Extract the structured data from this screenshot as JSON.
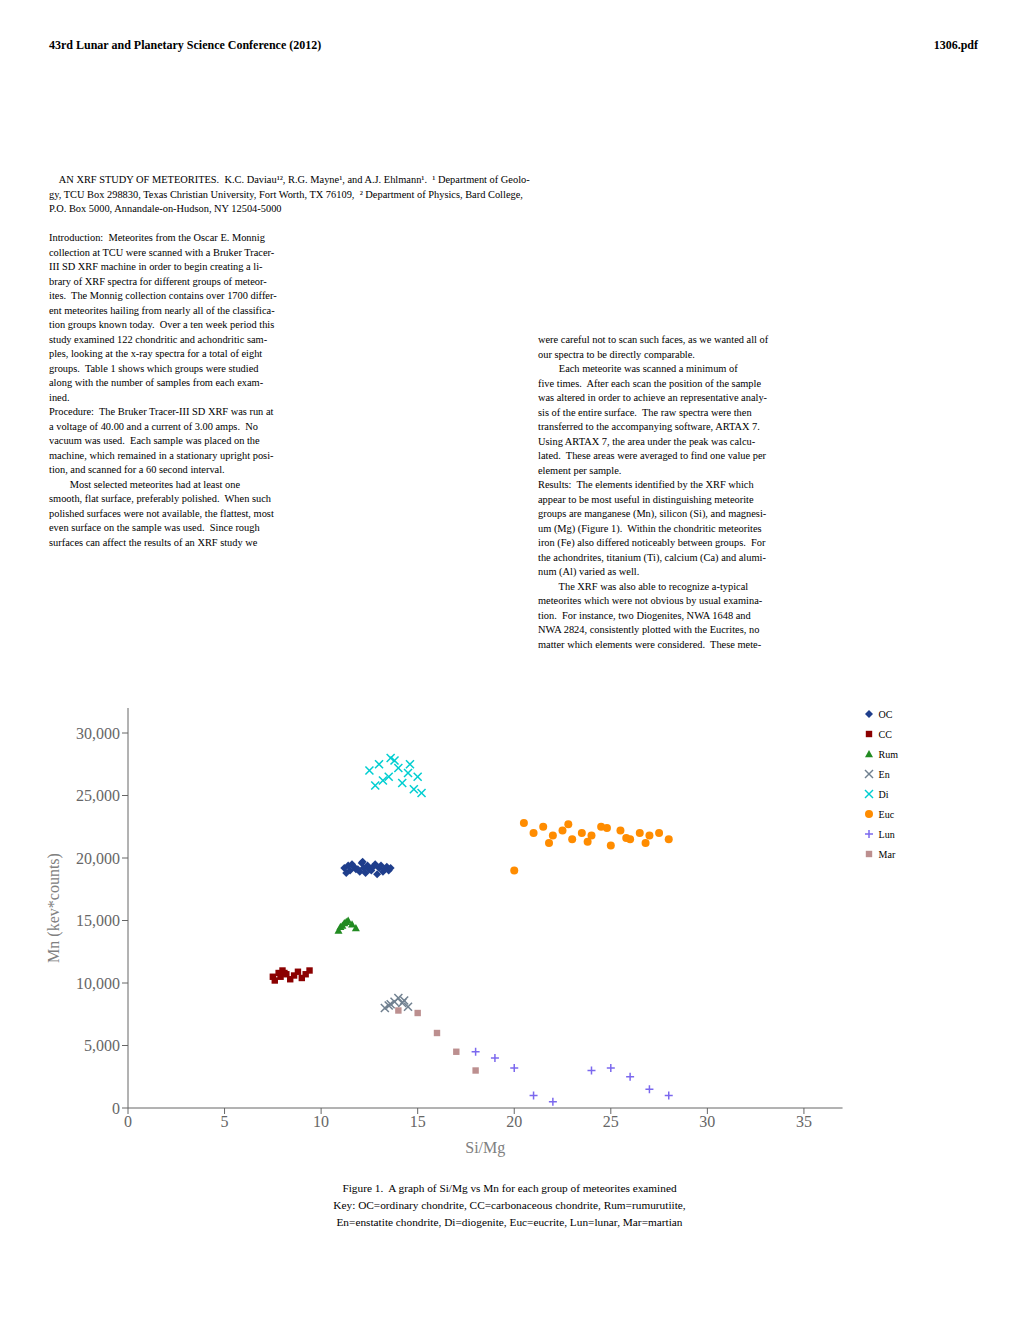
{
  "chart_data": {
    "type": "scatter",
    "title": "43rd Lunar and Planetary Science Conference (2012)",
    "annotations": [
      "1306.pdf",
      "    AN XRF STUDY OF METEORITES.  K.C. Daviau¹², R.G. Mayne¹, and A.J. Ehlmann¹.  ¹ Department of Geolo-\ngy, TCU Box 298830, Texas Christian University, Fort Worth, TX 76109,  ² Department of Physics, Bard College,\nP.O. Box 5000, Annandale-on-Hudson, NY 12504-5000\n\nIntroduction:  Meteorites from the Oscar E. Monnig\ncollection at TCU were scanned with a Bruker Tracer-\nIII SD XRF machine in order to begin creating a li-\nbrary of XRF spectra for different groups of meteor-\nites.  The Monnig collection contains over 1700 differ-\nent meteorites hailing from nearly all of the classifica-\ntion groups known today.  Over a ten week period this\nstudy examined 122 chondritic and achondritic sam-\nples, looking at the x-ray spectra for a total of eight\ngroups.  Table 1 shows which groups were studied\nalong with the number of samples from each exam-\nined.\nProcedure:  The Bruker Tracer-III SD XRF was run at\na voltage of 40.00 and a current of 3.00 amps.  No\nvacuum was used.  Each sample was placed on the\nmachine, which remained in a stationary upright posi-\ntion, and scanned for a 60 second interval.\n        Most selected meteorites had at least one\nsmooth, flat surface, preferably polished.  When such\npolished surfaces were not available, the flattest, most\neven surface on the sample was used.  Since rough\nsurfaces can affect the results of an XRF study we",
      "were careful not to scan such faces, as we wanted all of\nour spectra to be directly comparable.\n        Each meteorite was scanned a minimum of\nfive times.  After each scan the position of the sample\nwas altered in order to achieve an representative analy-\nsis of the entire surface.  The raw spectra were then\ntransferred to the accompanying software, ARTAX 7.\nUsing ARTAX 7, the area under the peak was calcu-\nlated.  These areas were averaged to find one value per\nelement per sample.\nResults:  The elements identified by the XRF which\nappear to be most useful in distinguishing meteorite\ngroups are manganese (Mn), silicon (Si), and magnesi-\num (Mg) (Figure 1).  Within the chondritic meteorites\niron (Fe) also differed noticeably between groups.  For\nthe achondrites, titanium (Ti), calcium (Ca) and alumi-\nnum (Al) varied as well.\n        The XRF was also able to recognize a-typical\nmeteorites which were not obvious by usual examina-\ntion.  For instance, two Diogenites, NWA 1648 and\nNWA 2824, consistently plotted with the Eucrites, no\nmatter which elements were considered.  These mete-",
      "Figure 1.  A graph of Si/Mg vs Mn for each group of meteorites examined\nKey: OC=ordinary chondrite, CC=carbonaceous chondrite, Rum=rumurutiite,\nEn=enstatite chondrite, Di=diogenite, Euc=eucrite, Lun=lunar, Mar=martian"
    ],
    "xlabel": "Si/Mg",
    "ylabel": "Mn (kev*counts)",
    "xlim": [
      0,
      37
    ],
    "ylim": [
      0,
      32000
    ],
    "xticks": [
      0,
      5,
      10,
      15,
      20,
      25,
      30,
      35
    ],
    "yticks": [
      0,
      {
        "value": 5000,
        "label": "5,000"
      },
      {
        "value": 10000,
        "label": "10,000"
      },
      {
        "value": 15000,
        "label": "15,000"
      },
      {
        "value": 20000,
        "label": "20,000"
      },
      {
        "value": 25000,
        "label": "25,000"
      },
      {
        "value": 30000,
        "label": "30,000"
      }
    ],
    "grid": false,
    "legend": "upper right",
    "series": [
      {
        "name": "OC",
        "color": "#1F3E8C",
        "marker": "diamond",
        "x": [
          11.2,
          11.4,
          11.5,
          11.6,
          11.7,
          11.8,
          12.0,
          12.1,
          12.2,
          12.3,
          12.4,
          12.5,
          12.6,
          12.7,
          12.8,
          12.9,
          13.0,
          13.1,
          13.2,
          13.3,
          13.4,
          13.5,
          13.6,
          11.3,
          11.9,
          12.15
        ],
        "values": [
          19200,
          19400,
          19000,
          19500,
          19300,
          19100,
          18900,
          19600,
          19200,
          18800,
          19400,
          19100,
          19000,
          19300,
          19500,
          18700,
          19200,
          19400,
          18900,
          19100,
          19300,
          19000,
          19200,
          18800,
          19100,
          19700
        ]
      },
      {
        "name": "CC",
        "color": "#8B0000",
        "marker": "square",
        "x": [
          7.5,
          7.8,
          8.0,
          8.2,
          8.4,
          8.6,
          8.8,
          9.0,
          9.2,
          9.4,
          7.6,
          7.9,
          8.1
        ],
        "values": [
          10500,
          10800,
          11000,
          10700,
          10300,
          10600,
          10900,
          10400,
          10700,
          11000,
          10200,
          10500,
          10800
        ]
      },
      {
        "name": "Rum",
        "color": "#228B22",
        "marker": "triangle",
        "x": [
          11.0,
          11.2,
          11.4,
          11.6,
          11.8,
          10.9,
          11.1,
          11.3
        ],
        "values": [
          14500,
          14800,
          15000,
          14700,
          14400,
          14200,
          14600,
          14900
        ]
      },
      {
        "name": "En",
        "color": "#708090",
        "marker": "x",
        "x": [
          13.5,
          13.8,
          14.0,
          14.2,
          14.5,
          13.3,
          13.6,
          14.3
        ],
        "values": [
          8200,
          8500,
          8800,
          8400,
          8100,
          8000,
          8300,
          8600
        ]
      },
      {
        "name": "Di",
        "color": "#00CED1",
        "marker": "x",
        "x": [
          12.5,
          13.0,
          13.5,
          14.0,
          14.5,
          12.8,
          13.2,
          13.8,
          14.2,
          14.8,
          15.0,
          15.2,
          13.6,
          14.6
        ],
        "values": [
          27000,
          27500,
          26500,
          27200,
          26800,
          25800,
          26200,
          27800,
          26000,
          25500,
          26500,
          25200,
          28000,
          27500
        ]
      },
      {
        "name": "Euc",
        "color": "#FF8C00",
        "marker": "circle",
        "x": [
          21,
          21.5,
          22,
          22.5,
          23,
          23.5,
          24,
          24.5,
          25,
          25.5,
          26,
          26.5,
          27,
          20.5,
          21.8,
          22.8,
          23.8,
          24.8,
          25.8,
          26.8,
          27.5,
          28,
          20
        ],
        "values": [
          22000,
          22500,
          21800,
          22200,
          21500,
          22000,
          21800,
          22500,
          21000,
          22200,
          21500,
          22000,
          21800,
          22800,
          21200,
          22700,
          21300,
          22400,
          21600,
          21200,
          22000,
          21500,
          19000
        ]
      },
      {
        "name": "Lun",
        "color": "#7B68EE",
        "marker": "plus",
        "x": [
          18,
          19,
          20,
          21,
          22,
          24,
          25,
          26,
          27,
          28
        ],
        "values": [
          4500,
          4000,
          3200,
          1000,
          500,
          3000,
          3200,
          2500,
          1500,
          1000
        ]
      },
      {
        "name": "Mar",
        "color": "#BC8F8F",
        "marker": "square",
        "x": [
          14,
          15,
          16,
          17,
          18
        ],
        "values": [
          7800,
          7600,
          6000,
          4500,
          3000
        ]
      }
    ]
  }
}
